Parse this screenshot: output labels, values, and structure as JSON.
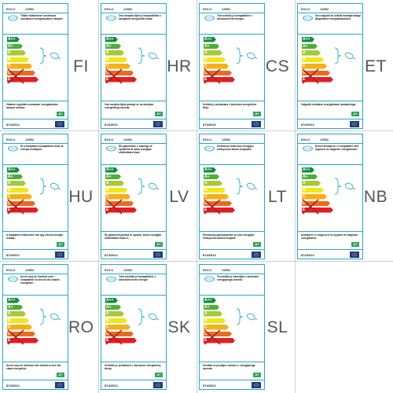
{
  "brand": "EGLO",
  "model": "13552",
  "regulation": "874/2012",
  "class_badge": "A+",
  "energy_classes": [
    {
      "label": "A++",
      "color": "#0f8f3c"
    },
    {
      "label": "A+",
      "color": "#4dae3a"
    },
    {
      "label": "A",
      "color": "#a7c83b"
    },
    {
      "label": "B",
      "color": "#f2e61a"
    },
    {
      "label": "C",
      "color": "#f4b019"
    },
    {
      "label": "D",
      "color": "#ea6a1f"
    },
    {
      "label": "E",
      "color": "#e21f26"
    }
  ],
  "labels": [
    {
      "lang": "FI",
      "top_text": "Tähän valaisimeen soveltuvat seuraavien energialuokkien lamput:",
      "bottom_text": "Valaisin myydään seuraavan energialuokan lampun kanssa:"
    },
    {
      "lang": "HR",
      "top_text": "Ova rasvjeta tijela je kompatibilna s žaruljama energetskih klasa:",
      "bottom_text": "Ova rasvjeta tijela prodaje se sa žaruljom energetskog razreda:"
    },
    {
      "lang": "CS",
      "top_text": "Toto svítidlo je kompatibilní s žárovkami tříd energie:",
      "bottom_text": "Svítidlo je prodáváno s žárovkou energetické třídy:"
    },
    {
      "lang": "ET",
      "top_text": "See valgusti on sobilik lambipirnidega järgmistest energiaklassidest:",
      "bottom_text": "Valgustit müüakse energiaklassi lambipirniga:"
    },
    {
      "lang": "HU",
      "top_text": "Ez a lámpatest kompatibilis izzók az energia osztályok:",
      "bottom_text": "A lámpatest értékesítve van egy izzóval energia osztály:"
    },
    {
      "lang": "LV",
      "top_text": "Šis gaismeklis ir saderīgs ar spuldzēm ar šādu enerģijas efektivitātes klasi:",
      "bottom_text": "Šo gaismekli pārdod ar spuldzi, kuras enerģijas efektivitātes klase ir:"
    },
    {
      "lang": "LT",
      "top_text": "Šviestuvui tinka šios energijos efektyvumo klasės lemputės:",
      "bottom_text": "Šviestuvas parduodamas su šios energijos efektyvumo klasės lempute:"
    },
    {
      "lang": "NB",
      "top_text": "Denne armaturen er kompatibel med lyspærer av følgende energiklasser:",
      "bottom_text": "Armaturen er solgt med en lyspære av følgende energiklasse:"
    },
    {
      "lang": "RO",
      "top_text": "Acest corp de iluminat sunt compatibile cu becuri din clasele energetice:",
      "bottom_text": "Acest corp de iluminat este vândut cu bec din clasa energetică:"
    },
    {
      "lang": "SK",
      "top_text": "Toto svietidlo je kompatibilné s žiarovkami tried energie:",
      "bottom_text": "Svietidlo je predávané s žiarovkou energetickej triedy:"
    },
    {
      "lang": "SL",
      "top_text": "Ta svetilka je združljiva z žarnicami energijskega razreda:",
      "bottom_text": "Svetilka se prodaja z žarnico v energijskega razreda:"
    }
  ]
}
